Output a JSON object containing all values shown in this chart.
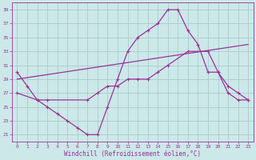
{
  "xlabel": "Windchill (Refroidissement éolien,°C)",
  "bg_color": "#cce8e8",
  "grid_color": "#aacccc",
  "line_color": "#993399",
  "x_ticks": [
    0,
    1,
    2,
    3,
    4,
    5,
    6,
    7,
    8,
    9,
    10,
    11,
    12,
    13,
    14,
    15,
    16,
    17,
    18,
    19,
    20,
    21,
    22,
    23
  ],
  "y_ticks": [
    21,
    23,
    25,
    27,
    29,
    31,
    33,
    35,
    37,
    39
  ],
  "ylim": [
    20.0,
    40.0
  ],
  "xlim": [
    -0.5,
    23.5
  ],
  "series1_x": [
    0,
    1,
    2,
    3,
    4,
    5,
    6,
    7,
    8,
    9,
    10,
    11,
    12,
    13,
    14,
    15,
    16,
    17,
    18,
    19,
    20,
    21,
    22,
    23
  ],
  "series1_y": [
    30,
    28,
    26,
    25,
    24,
    23,
    22,
    21,
    21,
    25,
    29,
    33,
    35,
    36,
    37,
    39,
    39,
    36,
    34,
    30,
    30,
    27,
    26,
    26
  ],
  "series2_x": [
    0,
    2,
    3,
    7,
    8,
    9,
    10,
    11,
    12,
    13,
    14,
    15,
    17,
    19,
    20,
    21,
    22,
    23
  ],
  "series2_y": [
    27,
    26,
    26,
    26,
    27,
    28,
    28,
    29,
    29,
    29,
    30,
    31,
    33,
    33,
    30,
    28,
    27,
    26
  ],
  "series3_x": [
    0,
    23
  ],
  "series3_y": [
    29,
    34
  ]
}
